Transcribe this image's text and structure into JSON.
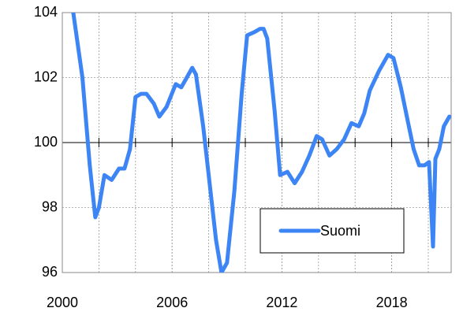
{
  "chart_data": {
    "type": "line",
    "x": [
      2000.6,
      2001.1,
      2001.5,
      2001.8,
      2002.0,
      2002.3,
      2002.7,
      2003.1,
      2003.4,
      2003.7,
      2004.0,
      2004.3,
      2004.6,
      2005.0,
      2005.3,
      2005.7,
      2006.2,
      2006.5,
      2006.8,
      2007.1,
      2007.3,
      2007.7,
      2008.1,
      2008.4,
      2008.7,
      2009.0,
      2009.4,
      2009.8,
      2010.1,
      2010.5,
      2010.8,
      2011.0,
      2011.2,
      2011.6,
      2011.9,
      2012.3,
      2012.7,
      2013.1,
      2013.5,
      2013.9,
      2014.2,
      2014.6,
      2015.0,
      2015.4,
      2015.8,
      2016.2,
      2016.5,
      2016.8,
      2017.3,
      2017.8,
      2018.1,
      2018.5,
      2018.9,
      2019.2,
      2019.5,
      2019.8,
      2020.04,
      2020.26,
      2020.39,
      2020.6,
      2020.85,
      2021.15
    ],
    "series": [
      {
        "name": "Suomi",
        "color": "#3d85f5",
        "values": [
          104.0,
          102.0,
          99.3,
          97.7,
          98.0,
          99.0,
          98.85,
          99.2,
          99.2,
          99.8,
          101.4,
          101.5,
          101.5,
          101.2,
          100.8,
          101.1,
          101.8,
          101.7,
          102.0,
          102.3,
          102.1,
          100.5,
          98.5,
          97.0,
          96.0,
          96.3,
          98.5,
          101.5,
          103.3,
          103.4,
          103.5,
          103.5,
          103.2,
          101.0,
          99.0,
          99.1,
          98.75,
          99.1,
          99.6,
          100.2,
          100.1,
          99.6,
          99.8,
          100.1,
          100.6,
          100.5,
          100.9,
          101.6,
          102.2,
          102.7,
          102.6,
          101.7,
          100.6,
          99.8,
          99.3,
          99.3,
          99.4,
          96.8,
          99.5,
          99.8,
          100.5,
          100.8
        ]
      }
    ],
    "xlim": [
      2000,
      2021.25
    ],
    "xticks": [
      2000,
      2006,
      2012,
      2018
    ],
    "xminorticks": [
      2002,
      2004,
      2006,
      2008,
      2010,
      2012,
      2014,
      2016,
      2018,
      2020
    ],
    "ylim": [
      96,
      104
    ],
    "yticks": [
      96,
      98,
      100,
      102,
      104
    ],
    "baseline": 100,
    "grid": true,
    "legend": "lower right"
  }
}
